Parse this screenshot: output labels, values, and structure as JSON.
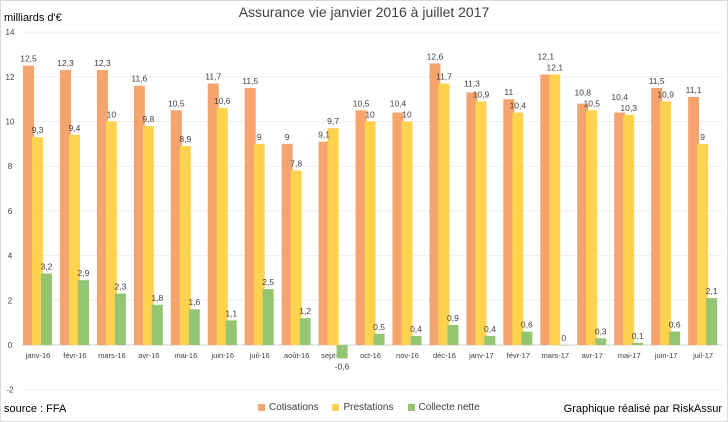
{
  "chart_data": {
    "type": "bar",
    "title": "Assurance vie janvier 2016 à juillet 2017",
    "ylabel": "milliards d'€",
    "xlabel": "",
    "ylim": [
      -2,
      14
    ],
    "yticks": [
      -2,
      0,
      2,
      4,
      6,
      8,
      10,
      12,
      14
    ],
    "grid": true,
    "legend_position": "bottom",
    "categories": [
      "janv-16",
      "févr-16",
      "mars-16",
      "avr-16",
      "mai-16",
      "juin-16",
      "juil-16",
      "août-16",
      "sept-16",
      "oct-16",
      "nov-16",
      "déc-16",
      "janv-17",
      "févr-17",
      "mars-17",
      "avr-17",
      "mai-17",
      "juin-17",
      "juil-17"
    ],
    "series": [
      {
        "name": "Cotisations",
        "color": "#F4A46C",
        "values": [
          12.5,
          12.3,
          12.3,
          11.6,
          10.5,
          11.7,
          11.5,
          9,
          9.1,
          10.5,
          10.4,
          12.6,
          11.3,
          11,
          12.1,
          10.8,
          10.4,
          11.5,
          11.1
        ]
      },
      {
        "name": "Prestations",
        "color": "#FFD34E",
        "values": [
          9.3,
          9.4,
          10,
          9.8,
          8.9,
          10.6,
          9,
          7.8,
          9.7,
          10,
          10,
          11.7,
          10.9,
          10.4,
          12.1,
          10.5,
          10.3,
          10.9,
          9
        ]
      },
      {
        "name": "Collecte nette",
        "color": "#93C572",
        "values": [
          3.2,
          2.9,
          2.3,
          1.8,
          1.6,
          1.1,
          2.5,
          1.2,
          -0.6,
          0.5,
          0.4,
          0.9,
          0.4,
          0.6,
          0,
          0.3,
          0.1,
          0.6,
          2.1
        ]
      }
    ]
  },
  "footer": {
    "source": "source : FFA",
    "credit": "Graphique réalisé par RiskAssur"
  }
}
